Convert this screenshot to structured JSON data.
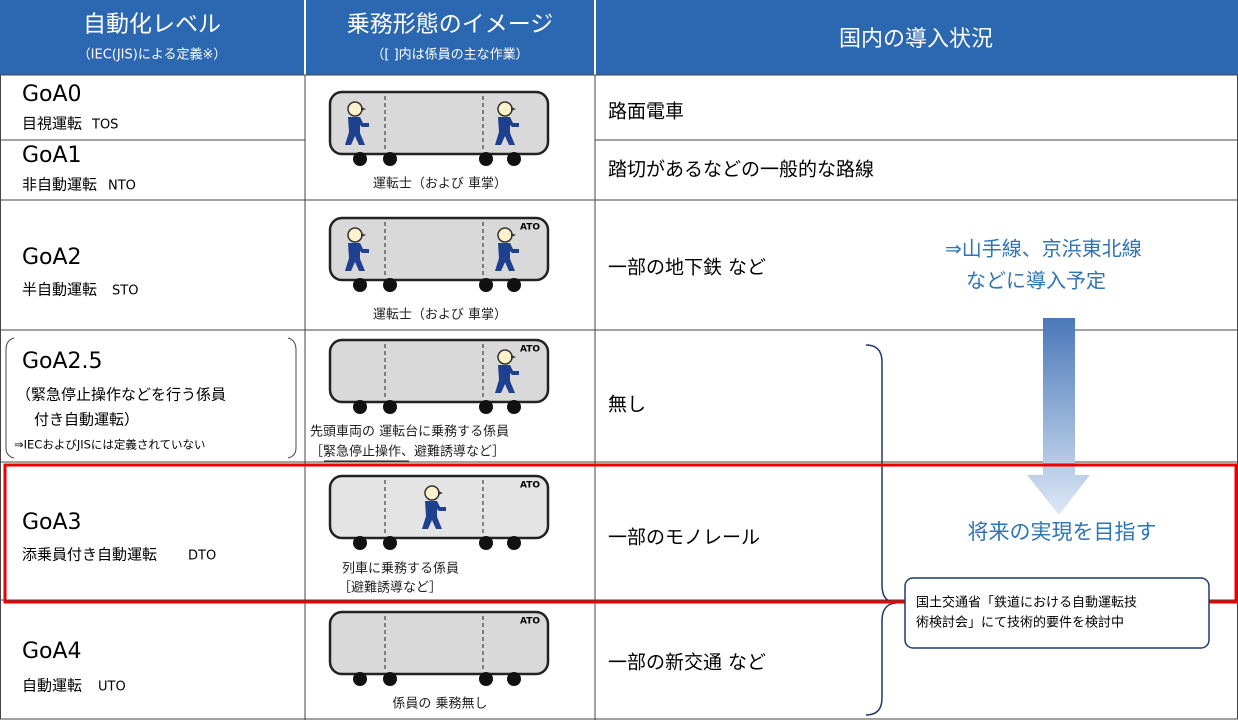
{
  "header": {
    "level": "自動化レベル",
    "level_note": "（IEC(JIS)による定義※）",
    "image": "乗務形態のイメージ",
    "image_note": "（[ ]内は係員の主な作業）",
    "status": "国内の導入状況"
  },
  "rows": [
    {
      "level": "GoA0",
      "name": "目視運転",
      "code": "TOS",
      "status": "路面電車"
    },
    {
      "level": "GoA1",
      "name": "非自動運転",
      "code": "NTO",
      "status": "踏切があるなどの一般的な路線"
    },
    {
      "level": "GoA2",
      "name": "半自動運転",
      "code": "STO",
      "status": "一部の地下鉄 など"
    },
    {
      "level": "GoA2.5",
      "name_lines": [
        "（緊急停止操作などを行う係員",
        "付き自動運転）"
      ],
      "note": "⇒IECおよびJISには定義されていない",
      "status": "無し"
    },
    {
      "level": "GoA3",
      "name": "添乗員付き自動運転",
      "code": "DTO",
      "status": "一部のモノレール"
    },
    {
      "level": "GoA4",
      "name": "自動運転",
      "code": "UTO",
      "status": "一部の新交通 など"
    }
  ],
  "images": [
    {
      "caption": [
        "運転士（および 車掌）"
      ]
    },
    {
      "caption": [
        "運転士（および 車掌）"
      ],
      "ato": "ATO"
    },
    {
      "caption": [
        "先頭車両の 運転台に乗務する係員",
        "［緊急停止操作、避難誘導など］"
      ],
      "ato": "ATO"
    },
    {
      "caption": [
        "列車に乗務する係員",
        "［避難誘導など］"
      ],
      "ato": "ATO"
    },
    {
      "caption": [
        "係員の 乗務無し"
      ],
      "ato": "ATO"
    }
  ],
  "annotations": {
    "plan": [
      "⇒山手線、京浜東北線",
      "などに導入予定"
    ],
    "future": "将来の実現を目指す",
    "note": [
      "国土交通省「鉄道における自動運転技",
      "術検討会」にて技術的要件を検討中"
    ]
  }
}
